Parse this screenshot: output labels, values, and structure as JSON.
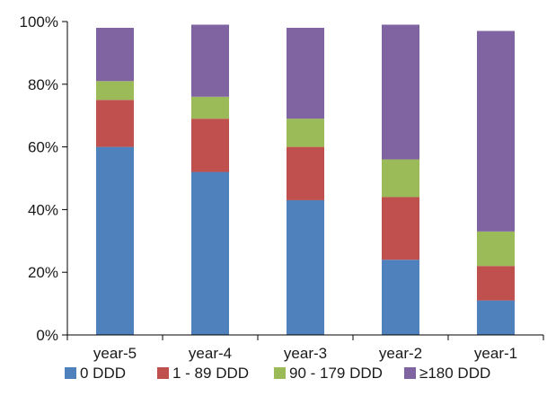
{
  "chart_data": {
    "type": "bar",
    "stacked": true,
    "categories": [
      "year-5",
      "year-4",
      "year-3",
      "year-2",
      "year-1"
    ],
    "series": [
      {
        "name": "0 DDD",
        "color": "#4f81bd",
        "values": [
          60,
          52,
          43,
          24,
          11
        ]
      },
      {
        "name": "1 - 89 DDD",
        "color": "#c0504d",
        "values": [
          15,
          17,
          17,
          20,
          11
        ]
      },
      {
        "name": "90 - 179 DDD",
        "color": "#9bbb59",
        "values": [
          6,
          7,
          9,
          12,
          11
        ]
      },
      {
        "name": "≥180 DDD",
        "color": "#8064a2",
        "values": [
          17,
          23,
          29,
          43,
          64
        ]
      }
    ],
    "ylim": [
      0,
      100
    ],
    "yticks": [
      "0%",
      "20%",
      "40%",
      "60%",
      "80%",
      "100%"
    ],
    "grid": false,
    "legend_position": "bottom",
    "title": "",
    "xlabel": "",
    "ylabel": ""
  }
}
